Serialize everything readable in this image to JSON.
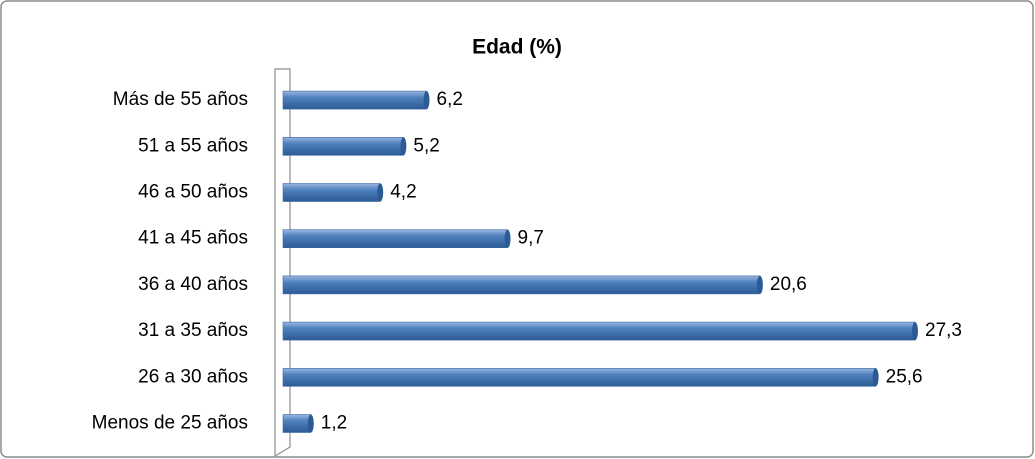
{
  "chart_data": {
    "type": "bar",
    "orientation": "horizontal",
    "title": "Edad (%)",
    "categories": [
      "Más de 55 años",
      "51 a 55 años",
      "46 a 50 años",
      "41 a 45 años",
      "36 a 40 años",
      "31 a 35 años",
      "26 a 30 años",
      "Menos de 25 años"
    ],
    "values": [
      6.2,
      5.2,
      4.2,
      9.7,
      20.6,
      27.3,
      25.6,
      1.2
    ],
    "value_labels": [
      "6,2",
      "5,2",
      "4,2",
      "9,7",
      "20,6",
      "27,3",
      "25,6",
      "1,2"
    ],
    "color": "#4f81bd"
  }
}
